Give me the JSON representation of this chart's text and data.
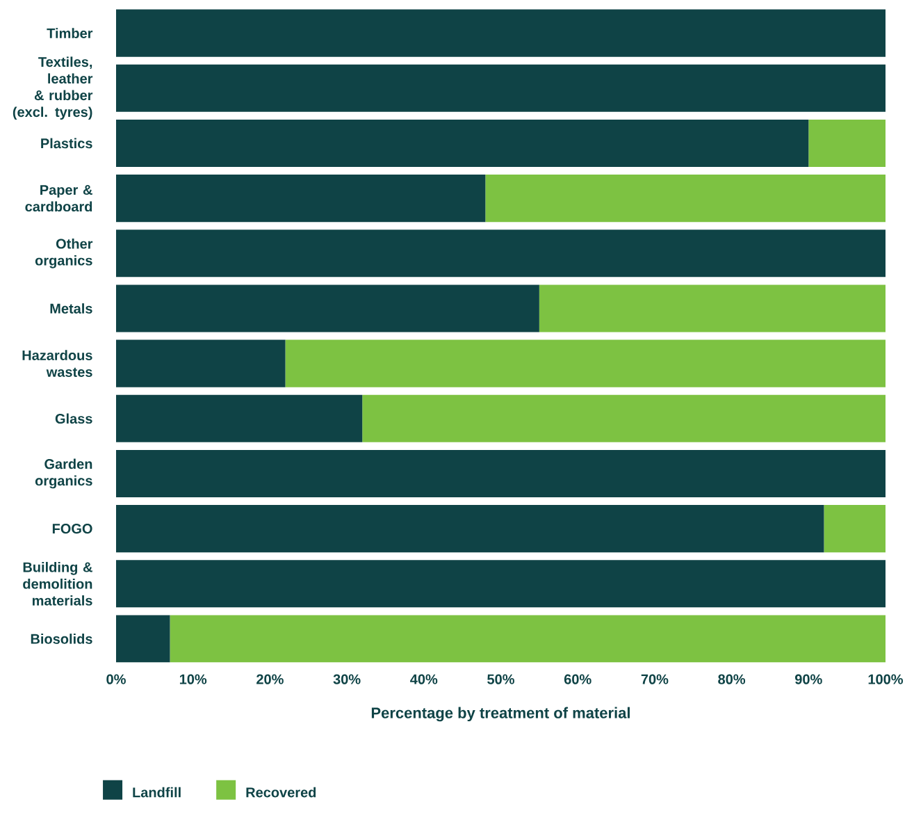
{
  "chart_data": {
    "type": "bar",
    "orientation": "horizontal",
    "stacked": true,
    "xlabel": "Percentage by treatment of material",
    "categories": [
      "Timber",
      "Textiles, leather & rubber (excl. tyres)",
      "Plastics",
      "Paper & cardboard",
      "Other organics",
      "Metals",
      "Hazardous wastes",
      "Glass",
      "Garden organics",
      "FOGO",
      "Building & demolition materials",
      "Biosolids"
    ],
    "series": [
      {
        "name": "Landfill",
        "color": "#0f4346",
        "values": [
          100,
          100,
          90,
          48,
          100,
          55,
          22,
          32,
          100,
          92,
          100,
          7
        ]
      },
      {
        "name": "Recovered",
        "color": "#7dc242",
        "values": [
          0,
          0,
          10,
          52,
          0,
          45,
          78,
          68,
          0,
          8,
          0,
          93
        ]
      }
    ],
    "xlim": [
      0,
      100
    ],
    "xticks": [
      {
        "value": 0,
        "label": "0%"
      },
      {
        "value": 10,
        "label": "10%"
      },
      {
        "value": 20,
        "label": "20%"
      },
      {
        "value": 30,
        "label": "30%"
      },
      {
        "value": 40,
        "label": "40%"
      },
      {
        "value": 50,
        "label": "50%"
      },
      {
        "value": 60,
        "label": "60%"
      },
      {
        "value": 70,
        "label": "70%"
      },
      {
        "value": 80,
        "label": "80%"
      },
      {
        "value": 90,
        "label": "90%"
      },
      {
        "value": 100,
        "label": "100%"
      }
    ],
    "grid": false,
    "legend": "bottom"
  }
}
